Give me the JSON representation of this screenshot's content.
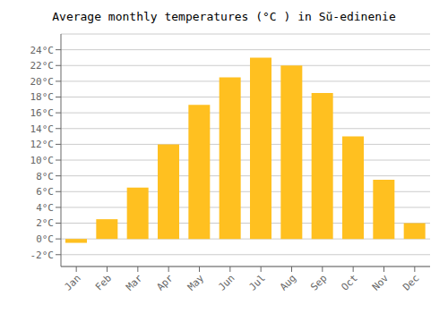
{
  "chart_data": {
    "type": "bar",
    "title": "Average monthly temperatures (°C ) in Sŭ-edinenie",
    "categories": [
      "Jan",
      "Feb",
      "Mar",
      "Apr",
      "May",
      "Jun",
      "Jul",
      "Aug",
      "Sep",
      "Oct",
      "Nov",
      "Dec"
    ],
    "values": [
      -0.5,
      2.5,
      6.5,
      12.0,
      17.0,
      20.5,
      23.0,
      22.0,
      18.5,
      13.0,
      7.5,
      2.0
    ],
    "color": "#FFC020",
    "ylim": [
      -3.5,
      26
    ],
    "yticks": [
      {
        "value": -2,
        "label": "-2°C"
      },
      {
        "value": 0,
        "label": "0°C"
      },
      {
        "value": 2,
        "label": "2°C"
      },
      {
        "value": 4,
        "label": "4°C"
      },
      {
        "value": 6,
        "label": "6°C"
      },
      {
        "value": 8,
        "label": "8°C"
      },
      {
        "value": 10,
        "label": "10°C"
      },
      {
        "value": 12,
        "label": "12°C"
      },
      {
        "value": 14,
        "label": "14°C"
      },
      {
        "value": 16,
        "label": "16°C"
      },
      {
        "value": 18,
        "label": "18°C"
      },
      {
        "value": 20,
        "label": "20°C"
      },
      {
        "value": 22,
        "label": "22°C"
      },
      {
        "value": 24,
        "label": "24°C"
      }
    ],
    "grid": true
  }
}
